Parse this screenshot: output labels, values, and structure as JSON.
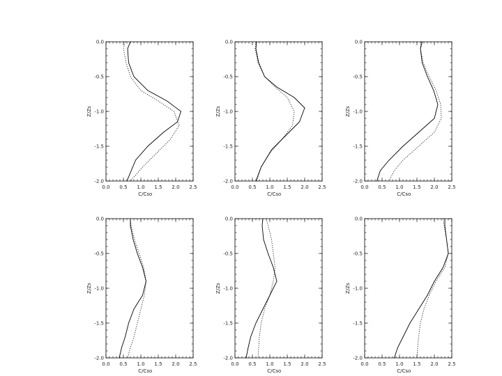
{
  "chart_data": [
    {
      "type": "line",
      "xlabel": "C/Cso",
      "ylabel": "Z/Zs",
      "xlim": [
        0,
        2.5
      ],
      "ylim": [
        -2,
        0
      ],
      "xticks": [
        0.0,
        0.5,
        1.0,
        1.5,
        2.0,
        2.5
      ],
      "xtick_labels": [
        "0.0",
        "0.5",
        "1.0",
        "1.5",
        "2.0",
        "2.5"
      ],
      "yticks": [
        0.0,
        -0.5,
        -1.0,
        -1.5,
        -2.0
      ],
      "ytick_labels": [
        "0.0",
        "-0.5",
        "-1.0",
        "-1.5",
        "-2.0"
      ],
      "series": [
        {
          "style": "solid",
          "x": [
            0.7,
            0.62,
            0.65,
            0.8,
            1.2,
            1.75,
            2.15,
            2.05,
            1.65,
            1.2,
            0.85,
            0.6
          ],
          "y": [
            0,
            -0.1,
            -0.3,
            -0.5,
            -0.7,
            -0.85,
            -1.0,
            -1.15,
            -1.3,
            -1.5,
            -1.7,
            -2.0
          ]
        },
        {
          "style": "dotted",
          "x": [
            0.55,
            0.5,
            0.58,
            0.7,
            1.0,
            1.5,
            1.95,
            2.1,
            1.85,
            1.45,
            1.05,
            0.7
          ],
          "y": [
            0,
            -0.1,
            -0.3,
            -0.5,
            -0.7,
            -0.85,
            -1.0,
            -1.2,
            -1.4,
            -1.6,
            -1.8,
            -2.0
          ]
        }
      ]
    },
    {
      "type": "line",
      "xlabel": "C/Cso",
      "ylabel": "Z/Zs",
      "xlim": [
        0,
        2.5
      ],
      "ylim": [
        -2,
        0
      ],
      "xticks": [
        0.0,
        0.5,
        1.0,
        1.5,
        2.0,
        2.5
      ],
      "xtick_labels": [
        "0.0",
        "0.5",
        "1.0",
        "1.5",
        "2.0",
        "2.5"
      ],
      "yticks": [
        0.0,
        -0.5,
        -1.0,
        -1.5,
        -2.0
      ],
      "ytick_labels": [
        "0.0",
        "-0.5",
        "-1.0",
        "-1.5",
        "-2.0"
      ],
      "series": [
        {
          "style": "solid",
          "x": [
            0.62,
            0.6,
            0.68,
            0.85,
            1.2,
            1.7,
            2.0,
            1.85,
            1.45,
            1.05,
            0.75,
            0.6
          ],
          "y": [
            0,
            -0.1,
            -0.3,
            -0.5,
            -0.65,
            -0.8,
            -0.95,
            -1.15,
            -1.35,
            -1.55,
            -1.8,
            -2.0
          ]
        },
        {
          "style": "dotted",
          "x": [
            0.6,
            0.58,
            0.66,
            0.85,
            1.15,
            1.5,
            1.7,
            1.65,
            1.35,
            1.0,
            0.75,
            0.62
          ],
          "y": [
            0,
            -0.1,
            -0.3,
            -0.5,
            -0.65,
            -0.8,
            -1.0,
            -1.2,
            -1.4,
            -1.6,
            -1.8,
            -2.0
          ]
        }
      ]
    },
    {
      "type": "line",
      "xlabel": "C/Cso",
      "ylabel": "Z/Zs",
      "xlim": [
        0,
        2.5
      ],
      "ylim": [
        -2,
        0
      ],
      "xticks": [
        0.0,
        0.5,
        1.0,
        1.5,
        2.0,
        2.5
      ],
      "xtick_labels": [
        "0.0",
        "0.5",
        "1.0",
        "1.5",
        "2.0",
        "2.5"
      ],
      "yticks": [
        0.0,
        -0.5,
        -1.0,
        -1.5,
        -2.0
      ],
      "ytick_labels": [
        "0.0",
        "-0.5",
        "-1.0",
        "-1.5",
        "-2.0"
      ],
      "series": [
        {
          "style": "solid",
          "x": [
            1.65,
            1.6,
            1.65,
            1.8,
            1.98,
            2.1,
            2.0,
            1.55,
            1.1,
            0.7,
            0.45,
            0.35
          ],
          "y": [
            0,
            -0.1,
            -0.3,
            -0.5,
            -0.7,
            -0.9,
            -1.1,
            -1.3,
            -1.5,
            -1.7,
            -1.85,
            -2.0
          ]
        },
        {
          "style": "dotted",
          "x": [
            1.62,
            1.6,
            1.68,
            1.85,
            2.05,
            2.18,
            2.2,
            2.0,
            1.55,
            1.1,
            0.85,
            0.7
          ],
          "y": [
            0,
            -0.1,
            -0.3,
            -0.5,
            -0.7,
            -0.9,
            -1.1,
            -1.3,
            -1.5,
            -1.7,
            -1.85,
            -2.0
          ]
        }
      ]
    },
    {
      "type": "line",
      "xlabel": "C/Cso",
      "ylabel": "Z/Zs",
      "xlim": [
        0,
        2.5
      ],
      "ylim": [
        -2,
        0
      ],
      "xticks": [
        0.0,
        0.5,
        1.0,
        1.5,
        2.0,
        2.5
      ],
      "xtick_labels": [
        "0.0",
        "0.5",
        "1.0",
        "1.5",
        "2.0",
        "2.5"
      ],
      "yticks": [
        0.0,
        -0.5,
        -1.0,
        -1.5,
        -2.0
      ],
      "ytick_labels": [
        "0.0",
        "-0.5",
        "-1.0",
        "-1.5",
        "-2.0"
      ],
      "series": [
        {
          "style": "solid",
          "x": [
            0.7,
            0.7,
            0.78,
            0.9,
            1.05,
            1.15,
            1.05,
            0.8,
            0.65,
            0.55,
            0.45,
            0.38
          ],
          "y": [
            0,
            -0.1,
            -0.3,
            -0.5,
            -0.7,
            -0.9,
            -1.1,
            -1.3,
            -1.5,
            -1.7,
            -1.85,
            -2.0
          ]
        },
        {
          "style": "dotted",
          "x": [
            0.7,
            0.72,
            0.82,
            0.95,
            1.08,
            1.15,
            1.1,
            1.0,
            0.9,
            0.8,
            0.7,
            0.62
          ],
          "y": [
            0,
            -0.1,
            -0.3,
            -0.5,
            -0.7,
            -0.9,
            -1.1,
            -1.3,
            -1.5,
            -1.7,
            -1.85,
            -2.0
          ]
        }
      ]
    },
    {
      "type": "line",
      "xlabel": "C/Cso",
      "ylabel": "Z/Zs",
      "xlim": [
        0,
        2.5
      ],
      "ylim": [
        -2,
        0
      ],
      "xticks": [
        0.0,
        0.5,
        1.0,
        1.5,
        2.0,
        2.5
      ],
      "xtick_labels": [
        "0.0",
        "0.5",
        "1.0",
        "1.5",
        "2.0",
        "2.5"
      ],
      "yticks": [
        0.0,
        -0.5,
        -1.0,
        -1.5,
        -2.0
      ],
      "ytick_labels": [
        "0.0",
        "-0.5",
        "-1.0",
        "-1.5",
        "-2.0"
      ],
      "series": [
        {
          "style": "solid",
          "x": [
            0.8,
            0.78,
            0.82,
            0.95,
            1.1,
            1.2,
            1.0,
            0.8,
            0.6,
            0.45,
            0.38,
            0.32
          ],
          "y": [
            0,
            -0.1,
            -0.3,
            -0.5,
            -0.7,
            -0.9,
            -1.1,
            -1.3,
            -1.5,
            -1.7,
            -1.85,
            -2.0
          ]
        },
        {
          "style": "dotted",
          "x": [
            0.9,
            0.95,
            1.05,
            1.1,
            1.15,
            1.1,
            1.0,
            0.85,
            0.75,
            0.7,
            0.68,
            0.66
          ],
          "y": [
            0,
            -0.1,
            -0.3,
            -0.5,
            -0.7,
            -0.9,
            -1.1,
            -1.3,
            -1.5,
            -1.7,
            -1.85,
            -2.0
          ]
        }
      ]
    },
    {
      "type": "line",
      "xlabel": "C/Cso",
      "ylabel": "Z/Zs",
      "xlim": [
        0,
        2.5
      ],
      "ylim": [
        -2,
        0
      ],
      "xticks": [
        0.0,
        0.5,
        1.0,
        1.5,
        2.0,
        2.5
      ],
      "xtick_labels": [
        "0.0",
        "0.5",
        "1.0",
        "1.5",
        "2.0",
        "2.5"
      ],
      "yticks": [
        0.0,
        -0.5,
        -1.0,
        -1.5,
        -2.0
      ],
      "ytick_labels": [
        "0.0",
        "-0.5",
        "-1.0",
        "-1.5",
        "-2.0"
      ],
      "series": [
        {
          "style": "solid",
          "x": [
            2.3,
            2.3,
            2.35,
            2.4,
            2.25,
            2.0,
            1.8,
            1.55,
            1.3,
            1.1,
            0.95,
            0.85
          ],
          "y": [
            0,
            -0.1,
            -0.3,
            -0.5,
            -0.7,
            -0.9,
            -1.1,
            -1.3,
            -1.5,
            -1.7,
            -1.85,
            -2.0
          ]
        },
        {
          "style": "dotted",
          "x": [
            2.25,
            2.28,
            2.35,
            2.4,
            2.3,
            2.05,
            1.85,
            1.7,
            1.6,
            1.55,
            1.52,
            1.5
          ],
          "y": [
            0,
            -0.1,
            -0.3,
            -0.5,
            -0.7,
            -0.9,
            -1.1,
            -1.3,
            -1.5,
            -1.7,
            -1.85,
            -2.0
          ]
        }
      ]
    }
  ]
}
